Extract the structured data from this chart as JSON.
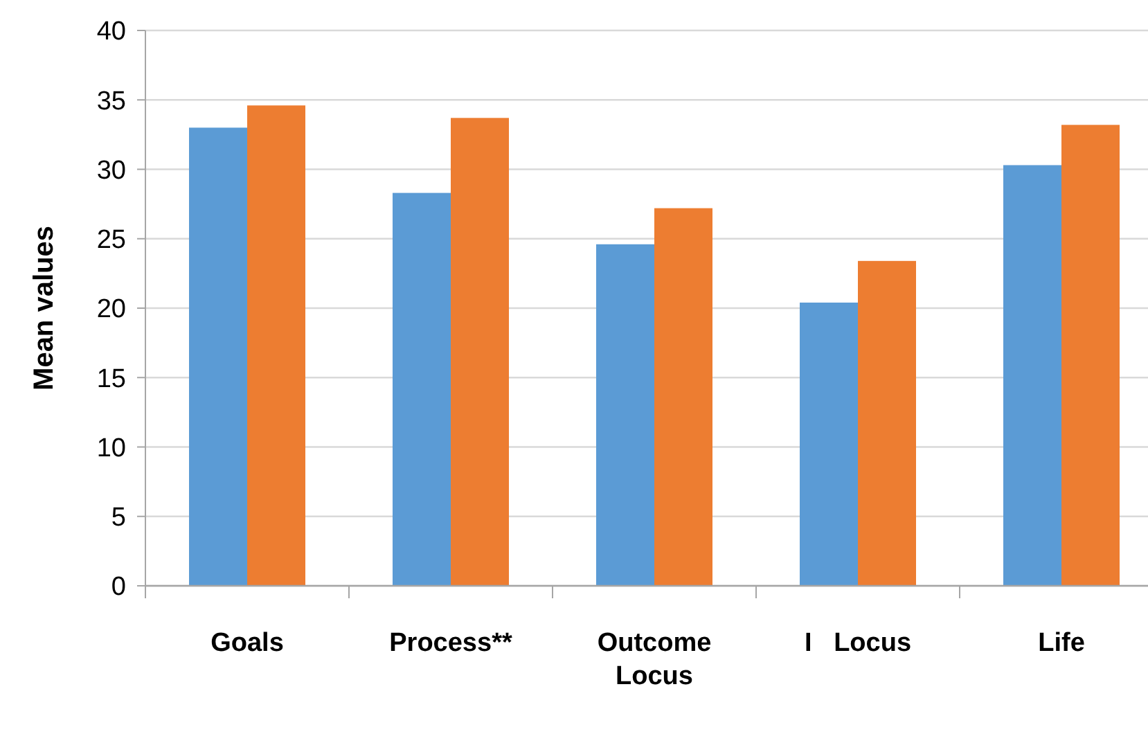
{
  "chart_data": {
    "type": "bar",
    "ylabel": "Mean values",
    "categories": [
      "Goals",
      "Process**",
      "Outcome Locus",
      "I   Locus",
      "Life"
    ],
    "series": [
      {
        "color": "#5b9bd5",
        "values": [
          33.0,
          28.3,
          24.6,
          20.4,
          30.3
        ]
      },
      {
        "color": "#ed7d31",
        "values": [
          34.6,
          33.7,
          27.2,
          23.4,
          33.2
        ]
      }
    ],
    "ylim": [
      0,
      40
    ],
    "yticks": [
      0,
      5,
      10,
      15,
      20,
      25,
      30,
      35,
      40
    ],
    "grid": "y"
  }
}
